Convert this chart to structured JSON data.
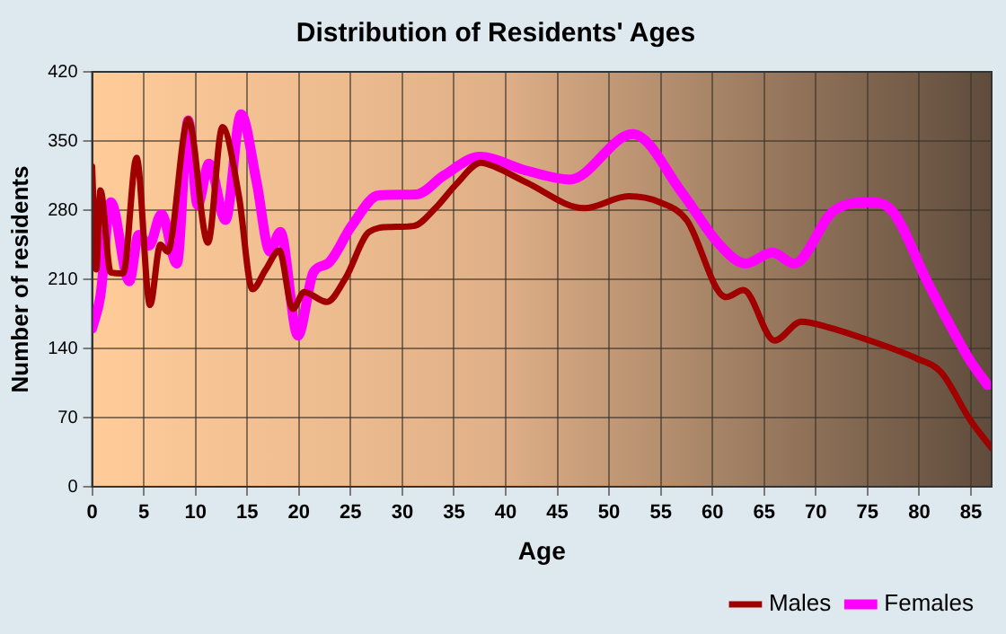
{
  "chart_data": {
    "type": "line",
    "title": "Distribution of Residents' Ages",
    "xlabel": "Age",
    "ylabel": "Number of residents",
    "xlim": [
      0,
      87
    ],
    "xticks": [
      0,
      5,
      10,
      15,
      20,
      25,
      30,
      35,
      40,
      45,
      50,
      55,
      60,
      65,
      70,
      75,
      80,
      85
    ],
    "ylim": [
      0,
      420
    ],
    "yticks": [
      0,
      70,
      140,
      210,
      280,
      350,
      420
    ],
    "grid": true,
    "legend": "bottom right",
    "marker": "none",
    "line_style": "solid",
    "series": [
      {
        "name": "Males",
        "color": "#a00000",
        "x": [
          0,
          0.4,
          0.8,
          1.8,
          3,
          4.3,
          5.6,
          6.6,
          7.3,
          9.3,
          11.2,
          12.6,
          14.2,
          15.5,
          16.8,
          18.1,
          19.4,
          20.5,
          22.7,
          24.5,
          26.8,
          28.9,
          31.1,
          33.2,
          35.2,
          37.6,
          38.9,
          42,
          47.6,
          51.9,
          54.9,
          57.5,
          61.3,
          63,
          66,
          68.6,
          71,
          75.2,
          79.7,
          82.1,
          84.9,
          87
        ],
        "values": [
          324,
          220,
          300,
          217,
          216,
          333,
          184,
          245,
          238,
          372,
          247,
          364,
          294,
          200,
          220,
          239,
          180,
          197,
          187,
          211,
          258,
          263,
          264,
          282,
          306,
          328,
          324,
          308,
          282,
          294,
          288,
          270,
          192,
          199,
          148,
          167,
          162,
          148,
          130,
          116,
          68,
          39
        ]
      },
      {
        "name": "Females",
        "color": "#ff00ff",
        "x": [
          0,
          0.8,
          1.8,
          3.6,
          4.5,
          5.5,
          6.7,
          8.2,
          9.3,
          10.2,
          11.3,
          12.9,
          14.4,
          15.9,
          17.2,
          18.2,
          19.9,
          21.4,
          22.8,
          25.1,
          27.7,
          31.4,
          34,
          37.5,
          42,
          46.2,
          52.3,
          57.1,
          60.6,
          63.2,
          65.8,
          67.9,
          71.7,
          75.2,
          77.4,
          80.9,
          84.9,
          86.6
        ],
        "values": [
          160,
          193,
          288,
          208,
          255,
          244,
          276,
          226,
          371,
          285,
          327,
          270,
          377,
          309,
          238,
          258,
          153,
          217,
          226,
          264,
          295,
          296,
          315,
          334,
          320,
          311,
          357,
          297,
          246,
          226,
          237,
          226,
          279,
          288,
          279,
          205,
          128,
          103
        ]
      }
    ]
  }
}
